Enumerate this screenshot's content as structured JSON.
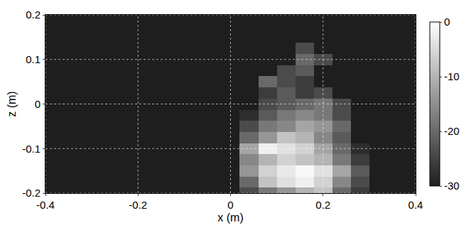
{
  "chart_data": {
    "type": "heatmap",
    "x_label": "x (m)",
    "y_label": "z (m)",
    "x": [
      -0.4,
      -0.36,
      -0.32,
      -0.28,
      -0.24,
      -0.2,
      -0.16,
      -0.12,
      -0.08,
      -0.04,
      0,
      0.04,
      0.08,
      0.12,
      0.16,
      0.2,
      0.24,
      0.28,
      0.32,
      0.36,
      0.4
    ],
    "y": [
      -0.2,
      -0.175,
      -0.15,
      -0.125,
      -0.1,
      -0.075,
      -0.05,
      -0.025,
      0,
      0.025,
      0.05,
      0.075,
      0.1,
      0.125,
      0.15,
      0.175,
      0.2
    ],
    "cells": [
      [
        -30,
        -30,
        -30,
        -30,
        -30,
        -30,
        -30,
        -30,
        -30,
        -30,
        -30,
        -24,
        -18,
        -14,
        -10,
        -8,
        -20,
        -26,
        -30,
        -30,
        -30
      ],
      [
        -30,
        -30,
        -30,
        -30,
        -30,
        -30,
        -30,
        -30,
        -30,
        -30,
        -30,
        -20,
        -8,
        -4,
        -2,
        -6,
        -16,
        -24,
        -30,
        -30,
        -30
      ],
      [
        -30,
        -30,
        -30,
        -30,
        -30,
        -30,
        -30,
        -30,
        -30,
        -30,
        -30,
        -14,
        -6,
        -3,
        -1,
        -4,
        -12,
        -22,
        -30,
        -30,
        -30
      ],
      [
        -30,
        -30,
        -30,
        -30,
        -30,
        -30,
        -30,
        -30,
        -30,
        -30,
        -30,
        -16,
        -10,
        -6,
        -8,
        -10,
        -18,
        -26,
        -30,
        -30,
        -30
      ],
      [
        -30,
        -30,
        -30,
        -30,
        -30,
        -30,
        -30,
        -30,
        -30,
        -30,
        -30,
        -12,
        -2,
        -4,
        -6,
        -12,
        -20,
        -28,
        -30,
        -30,
        -30
      ],
      [
        -30,
        -30,
        -30,
        -30,
        -30,
        -30,
        -30,
        -30,
        -30,
        -30,
        -30,
        -20,
        -14,
        -8,
        -10,
        -16,
        -22,
        -30,
        -30,
        -30,
        -30
      ],
      [
        -30,
        -30,
        -30,
        -30,
        -30,
        -30,
        -30,
        -30,
        -30,
        -30,
        -30,
        -24,
        -18,
        -16,
        -12,
        -14,
        -20,
        -30,
        -30,
        -30,
        -30
      ],
      [
        -30,
        -30,
        -30,
        -30,
        -30,
        -30,
        -30,
        -30,
        -30,
        -30,
        -30,
        -28,
        -22,
        -18,
        -16,
        -18,
        -24,
        -30,
        -30,
        -30,
        -30
      ],
      [
        -30,
        -30,
        -30,
        -30,
        -30,
        -30,
        -30,
        -30,
        -30,
        -30,
        -30,
        -30,
        -24,
        -22,
        -20,
        -18,
        -24,
        -30,
        -30,
        -30,
        -30
      ],
      [
        -30,
        -30,
        -30,
        -30,
        -30,
        -30,
        -30,
        -30,
        -30,
        -30,
        -30,
        -30,
        -26,
        -22,
        -26,
        -24,
        -30,
        -30,
        -30,
        -30,
        -30
      ],
      [
        -30,
        -30,
        -30,
        -30,
        -30,
        -30,
        -30,
        -30,
        -30,
        -30,
        -30,
        -30,
        -20,
        -24,
        -26,
        -30,
        -30,
        -30,
        -30,
        -30,
        -30
      ],
      [
        -30,
        -30,
        -30,
        -30,
        -30,
        -30,
        -30,
        -30,
        -30,
        -30,
        -30,
        -30,
        -30,
        -24,
        -22,
        -30,
        -30,
        -30,
        -30,
        -30,
        -30
      ],
      [
        -30,
        -30,
        -30,
        -30,
        -30,
        -30,
        -30,
        -30,
        -30,
        -30,
        -30,
        -30,
        -30,
        -30,
        -20,
        -24,
        -30,
        -30,
        -30,
        -30,
        -30
      ],
      [
        -30,
        -30,
        -30,
        -30,
        -30,
        -30,
        -30,
        -30,
        -30,
        -30,
        -30,
        -30,
        -30,
        -30,
        -24,
        -30,
        -30,
        -30,
        -30,
        -30,
        -30
      ],
      [
        -30,
        -30,
        -30,
        -30,
        -30,
        -30,
        -30,
        -30,
        -30,
        -30,
        -30,
        -30,
        -30,
        -30,
        -30,
        -30,
        -30,
        -30,
        -30,
        -30,
        -30
      ],
      [
        -30,
        -30,
        -30,
        -30,
        -30,
        -30,
        -30,
        -30,
        -30,
        -30,
        -30,
        -30,
        -30,
        -30,
        -30,
        -30,
        -30,
        -30,
        -30,
        -30,
        -30
      ],
      [
        -30,
        -30,
        -30,
        -30,
        -30,
        -30,
        -30,
        -30,
        -30,
        -30,
        -30,
        -30,
        -30,
        -30,
        -30,
        -30,
        -30,
        -30,
        -30,
        -30,
        -30
      ]
    ],
    "xlim": [
      -0.4,
      0.4
    ],
    "xticks": [
      -0.4,
      -0.2,
      0,
      0.2,
      0.4
    ],
    "ylim": [
      -0.2,
      0.2
    ],
    "yticks": [
      -0.2,
      -0.1,
      0,
      0.1,
      0.2
    ],
    "grid": true,
    "colorbar_range": [
      -30,
      0
    ],
    "colorbar_ticks": [
      0,
      -10,
      -20,
      -30
    ]
  }
}
